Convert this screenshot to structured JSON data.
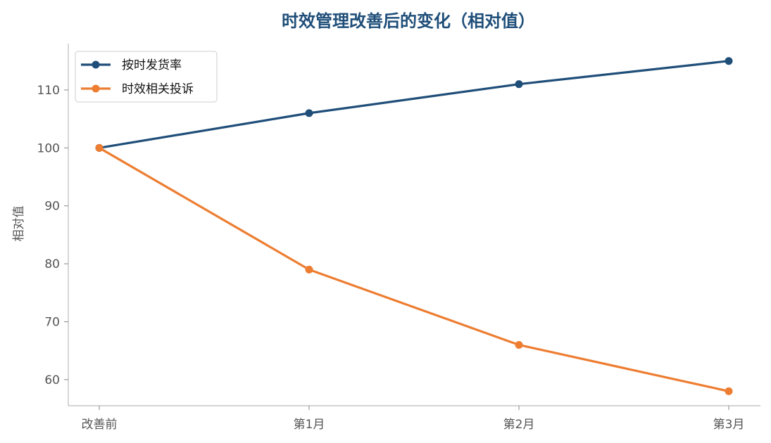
{
  "chart_data": {
    "type": "line",
    "title": "时效管理改善后的变化（相对值）",
    "xlabel": "",
    "ylabel": "相对值",
    "categories": [
      "改善前",
      "第1月",
      "第2月",
      "第3月"
    ],
    "yticks": [
      60,
      70,
      80,
      90,
      100,
      110
    ],
    "ylim": [
      55.5,
      118
    ],
    "grid": false,
    "legend_position": "top-left",
    "series": [
      {
        "name": "按时发货率",
        "values": [
          100,
          106,
          111,
          115
        ],
        "color": "#1f4e79"
      },
      {
        "name": "时效相关投诉",
        "values": [
          100,
          79,
          66,
          58
        ],
        "color": "#ed7d31"
      }
    ],
    "title_color": "#1f4e79",
    "axis_color": "#bbbbbb"
  }
}
